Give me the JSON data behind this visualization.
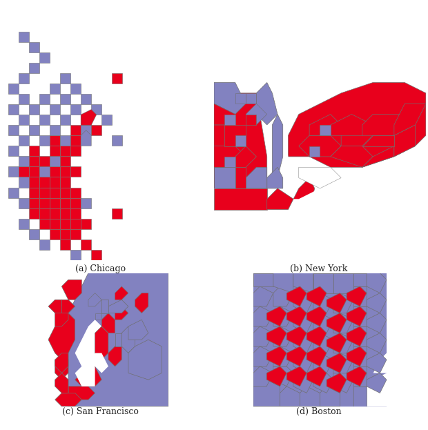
{
  "bg_color": "#ffffff",
  "red": "#e8001c",
  "blue": "#8282c0",
  "border_color": "#707070",
  "label_fontsize": 9,
  "figsize": [
    6.2,
    6.23
  ],
  "dpi": 100,
  "panel_labels": [
    "(a) Chicago",
    "(b) New York",
    "(c) San Francisco",
    "(d) Boston"
  ]
}
